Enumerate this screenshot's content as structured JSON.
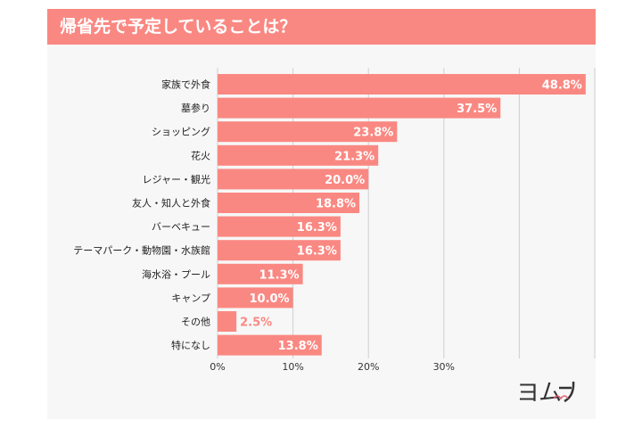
{
  "title": "帰省先で予定していることは？",
  "logo_text": "ヨムーノ",
  "chart_data": {
    "type": "bar",
    "orientation": "horizontal",
    "title": "帰省先で予定していることは？",
    "categories": [
      "家族で外食",
      "墓参り",
      "ショッピング",
      "花火",
      "レジャー・観光",
      "友人・知人と外食",
      "バーベキュー",
      "テーマパーク・動物園・水族館",
      "海水浴・プール",
      "キャンプ",
      "その他",
      "特になし"
    ],
    "values": [
      48.8,
      37.5,
      23.8,
      21.3,
      20.0,
      18.8,
      16.3,
      16.3,
      11.3,
      10.0,
      2.5,
      13.8
    ],
    "value_labels": [
      "48.8%",
      "37.5%",
      "23.8%",
      "21.3%",
      "20.0%",
      "18.8%",
      "16.3%",
      "16.3%",
      "11.3%",
      "10.0%",
      "2.5%",
      "13.8%"
    ],
    "x_ticks": [
      "0%",
      "10%",
      "20%",
      "30%"
    ],
    "xlim": [
      0,
      50
    ],
    "grid": true,
    "bar_color": "#fa8882"
  }
}
